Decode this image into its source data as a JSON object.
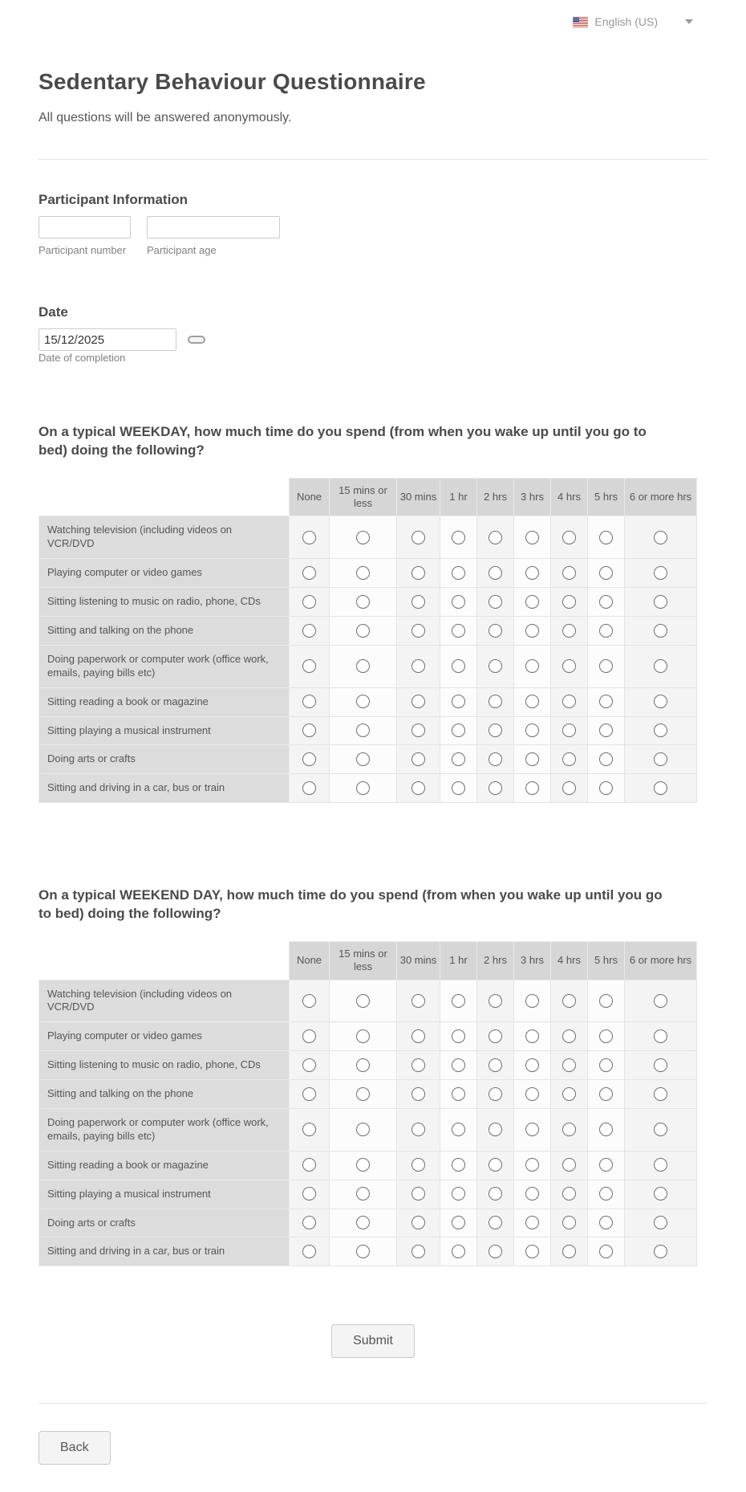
{
  "language": {
    "label": "English (US)",
    "flag_icon": "us-flag-icon",
    "caret_icon": "chevron-down-icon"
  },
  "header": {
    "title": "Sedentary Behaviour Questionnaire",
    "subtitle": "All questions will be answered anonymously."
  },
  "participant": {
    "heading": "Participant Information",
    "fields": [
      {
        "label": "Participant number",
        "value": ""
      },
      {
        "label": "Participant age",
        "value": ""
      }
    ]
  },
  "date": {
    "heading": "Date",
    "value": "15/12/2025",
    "label": "Date of completion"
  },
  "questions": [
    {
      "heading": "On a typical WEEKDAY, how much time do you spend (from when you wake up until you go to bed) doing the following?"
    },
    {
      "heading": "On a typical WEEKEND DAY, how much time do you spend (from when you wake up until you go to bed) doing the following?"
    }
  ],
  "matrix": {
    "columns": [
      "None",
      "15 mins or less",
      "30 mins",
      "1 hr",
      "2 hrs",
      "3 hrs",
      "4 hrs",
      "5 hrs",
      "6 or more hrs"
    ],
    "rows": [
      "Watching television (including videos on VCR/DVD",
      "Playing computer or video games",
      "Sitting listening to music on radio, phone, CDs",
      "Sitting and talking on the phone",
      "Doing paperwork or computer work (office work, emails, paying bills etc)",
      "Sitting reading a book or magazine",
      "Sitting playing a musical instrument",
      "Doing arts or crafts",
      "Sitting and driving in a car, bus or train"
    ]
  },
  "buttons": {
    "submit": "Submit",
    "back": "Back"
  },
  "colors": {
    "matrix_header_bg": "#d6d6d6",
    "matrix_label_bg": "#dcdcdc",
    "heading_text": "#4a4a4a",
    "muted_text": "#808080"
  }
}
